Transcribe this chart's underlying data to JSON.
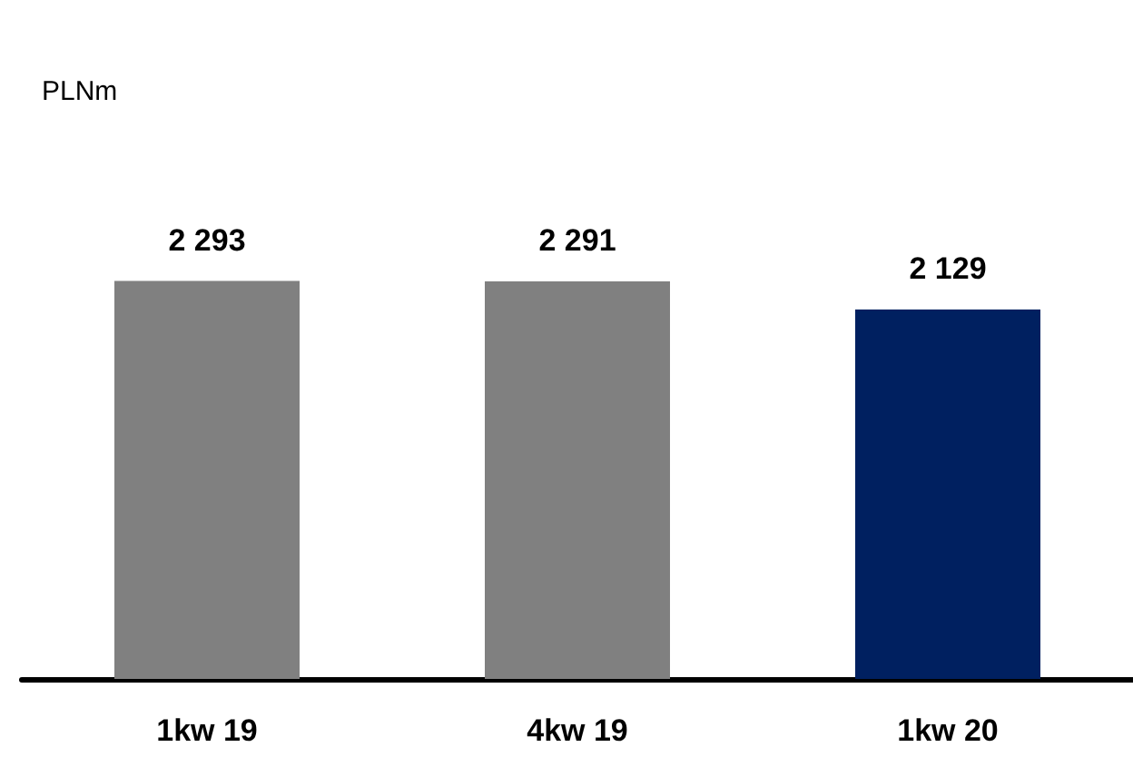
{
  "chart_data": {
    "type": "bar",
    "annotations": [
      "PLNm"
    ],
    "categories": [
      "1kw 19",
      "4kw 19",
      "1kw 20"
    ],
    "values": [
      2293,
      2291,
      2129
    ],
    "colors": [
      "#808080",
      "#808080",
      "#002060"
    ],
    "value_labels": [
      "2 293",
      "2 291",
      "2 129"
    ]
  }
}
